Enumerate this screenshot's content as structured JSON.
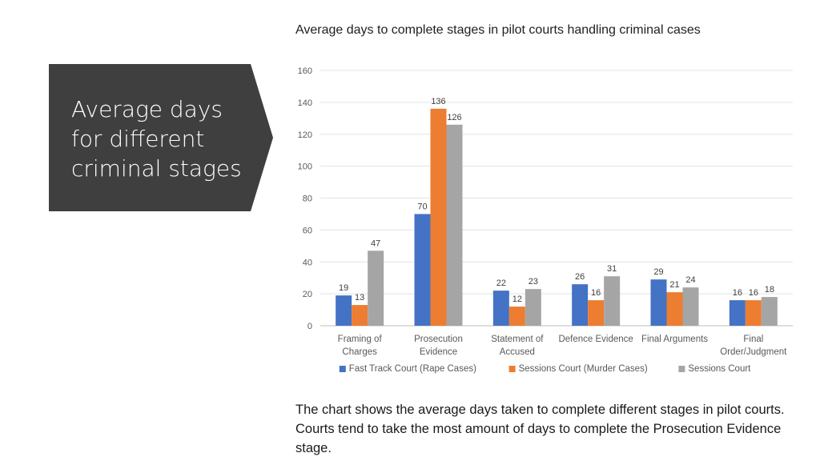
{
  "slide": {
    "panel_title": "Average days for different criminal stages",
    "caption": "The chart shows the average days taken to complete different stages in pilot courts. Courts tend to take the most amount of days to complete the Prosecution Evidence stage.",
    "panel_color": "#3f3f3f"
  },
  "chart_data": {
    "type": "bar",
    "title": "Average days to complete stages in pilot courts handling criminal cases",
    "categories": [
      [
        "Framing of",
        "Charges"
      ],
      [
        "Prosecution",
        "Evidence"
      ],
      [
        "Statement of",
        "Accused"
      ],
      [
        "Defence Evidence"
      ],
      [
        "Final Arguments"
      ],
      [
        "Final",
        "Order/Judgment"
      ]
    ],
    "series": [
      {
        "name": "Fast Track Court (Rape Cases)",
        "color": "#4472c4",
        "values": [
          19,
          70,
          22,
          26,
          29,
          16
        ]
      },
      {
        "name": "Sessions Court (Murder Cases)",
        "color": "#ed7d31",
        "values": [
          13,
          136,
          12,
          16,
          21,
          16
        ]
      },
      {
        "name": "Sessions Court",
        "color": "#a5a5a5",
        "values": [
          47,
          126,
          23,
          31,
          24,
          18
        ]
      }
    ],
    "ylim": [
      0,
      160
    ],
    "yticks": [
      0,
      20,
      40,
      60,
      80,
      100,
      120,
      140,
      160
    ],
    "grid": true,
    "legend_position": "bottom"
  }
}
